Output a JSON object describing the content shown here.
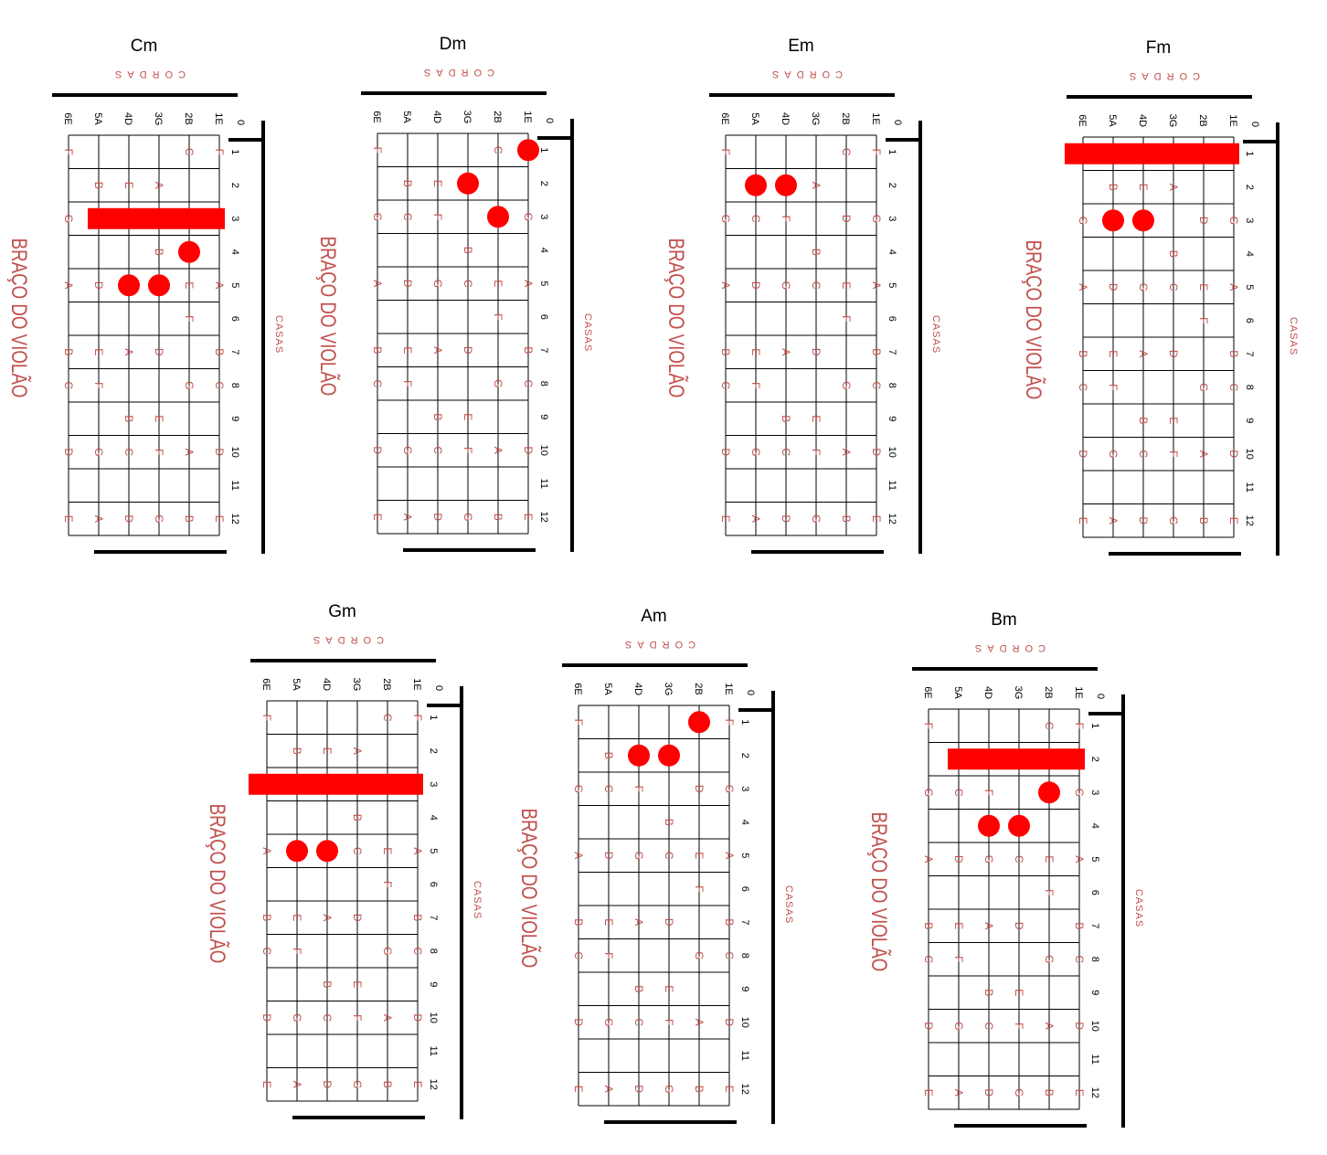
{
  "labels": {
    "strings_word": "CORDAS",
    "frets_word": "CASAS",
    "neck_word": "BRAÇO DO VIOLÃO",
    "open_fret": "0",
    "fret_numbers": [
      "1",
      "2",
      "3",
      "4",
      "5",
      "6",
      "7",
      "8",
      "9",
      "10",
      "11",
      "12"
    ],
    "string_names": [
      "6E",
      "5A",
      "4D",
      "3G",
      "2B",
      "1E"
    ]
  },
  "colors": {
    "marker": "#ff0000",
    "note_text": "#c0504d",
    "frame": "#000000",
    "grid": "#000000"
  },
  "fretboard_notes": [
    [
      "F",
      "",
      "",
      "",
      "C",
      "F"
    ],
    [
      "",
      "B",
      "E",
      "A",
      "",
      ""
    ],
    [
      "G",
      "C",
      "F",
      "",
      "D",
      "G"
    ],
    [
      "",
      "",
      "",
      "B",
      "",
      ""
    ],
    [
      "A",
      "D",
      "G",
      "C",
      "E",
      "A"
    ],
    [
      "",
      "",
      "",
      "",
      "F",
      ""
    ],
    [
      "B",
      "E",
      "A",
      "D",
      "",
      "B"
    ],
    [
      "C",
      "F",
      "",
      "",
      "G",
      "C"
    ],
    [
      "",
      "",
      "B",
      "E",
      "",
      ""
    ],
    [
      "D",
      "G",
      "C",
      "F",
      "A",
      "D"
    ],
    [
      "",
      "",
      "",
      "",
      "",
      ""
    ],
    [
      "E",
      "A",
      "D",
      "G",
      "B",
      "E"
    ]
  ],
  "chords": [
    {
      "name": "Cm",
      "barre": {
        "fret": 3,
        "from_string": 5,
        "to_string": 1
      },
      "dots": [
        {
          "string": 2,
          "fret": 4
        },
        {
          "string": 4,
          "fret": 5
        },
        {
          "string": 3,
          "fret": 5
        }
      ]
    },
    {
      "name": "Dm",
      "barre": null,
      "dots": [
        {
          "string": 1,
          "fret": 1
        },
        {
          "string": 3,
          "fret": 2
        },
        {
          "string": 2,
          "fret": 3
        }
      ]
    },
    {
      "name": "Em",
      "barre": null,
      "dots": [
        {
          "string": 5,
          "fret": 2
        },
        {
          "string": 4,
          "fret": 2
        }
      ]
    },
    {
      "name": "Fm",
      "barre": {
        "fret": 1,
        "from_string": 6,
        "to_string": 1
      },
      "dots": [
        {
          "string": 5,
          "fret": 3
        },
        {
          "string": 4,
          "fret": 3
        }
      ]
    },
    {
      "name": "Gm",
      "barre": {
        "fret": 3,
        "from_string": 6,
        "to_string": 1
      },
      "dots": [
        {
          "string": 5,
          "fret": 5
        },
        {
          "string": 4,
          "fret": 5
        }
      ]
    },
    {
      "name": "Am",
      "barre": null,
      "dots": [
        {
          "string": 2,
          "fret": 1
        },
        {
          "string": 4,
          "fret": 2
        },
        {
          "string": 3,
          "fret": 2
        }
      ]
    },
    {
      "name": "Bm",
      "barre": {
        "fret": 2,
        "from_string": 5,
        "to_string": 1
      },
      "dots": [
        {
          "string": 2,
          "fret": 3
        },
        {
          "string": 4,
          "fret": 4
        },
        {
          "string": 3,
          "fret": 4
        }
      ]
    }
  ]
}
